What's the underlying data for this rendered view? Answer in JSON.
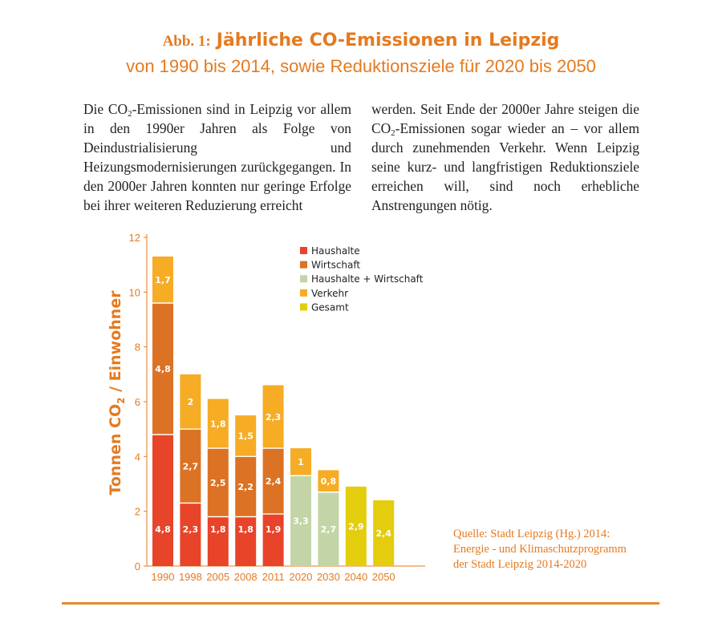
{
  "header": {
    "prefix": "Abb. 1:",
    "title": "Jährliche CO-Emissionen in Leipzig",
    "subtitle": "von 1990 bis 2014, sowie Reduktionsziele für 2020 bis 2050"
  },
  "text": {
    "left": {
      "p1": "Die CO",
      "sub": "2",
      "p2": "-Emissionen sind in Leipzig vor allem in den 1990er Jahren als Folge von Deindustrialisierung und Heizungsmodernisierungen zurückgegangen. In den 2000er Jahren konnten nur geringe Erfolge bei ihrer weiteren Reduzierung erreicht"
    },
    "right": {
      "p1": "werden. Seit Ende der 2000er Jahre steigen die CO",
      "sub": "2",
      "p2": "-Emissionen sogar wieder an – vor allem durch zunehmenden Verkehr. Wenn Leipzig seine kurz- und langfristigen Reduktionsziele erreichen will, sind noch erhebliche Anstrengungen nötig."
    }
  },
  "source": {
    "line1": "Quelle: Stadt Leipzig (Hg.) 2014:",
    "line2": "Energie - und Klimaschutzprogramm",
    "line3": "der Stadt Leipzig 2014-2020"
  },
  "chart_data": {
    "type": "bar",
    "stacked": true,
    "categories": [
      "1990",
      "1998",
      "2005",
      "2008",
      "2011",
      "2020",
      "2030",
      "2040",
      "2050"
    ],
    "ylabel": "Tonnen CO",
    "ylabel_sub": "2",
    "ylabel_rest": " / Einwohner",
    "ylim": [
      0,
      12
    ],
    "yticks": [
      "0",
      "2",
      "4",
      "6",
      "8",
      "10",
      "12"
    ],
    "legend_position": "top-right",
    "series": [
      {
        "name": "Haushalte",
        "color": "#e8442a",
        "values": [
          4.8,
          2.3,
          1.8,
          1.8,
          1.9,
          null,
          null,
          null,
          null
        ],
        "labels": [
          "4,8",
          "2,3",
          "1,8",
          "1,8",
          "1,9",
          "",
          "",
          "",
          ""
        ]
      },
      {
        "name": "Wirtschaft",
        "color": "#dc7223",
        "values": [
          4.8,
          2.7,
          2.5,
          2.2,
          2.4,
          null,
          null,
          null,
          null
        ],
        "labels": [
          "4,8",
          "2,7",
          "2,5",
          "2,2",
          "2,4",
          "",
          "",
          "",
          ""
        ]
      },
      {
        "name": "Haushalte + Wirtschaft",
        "color": "#c3d5a7",
        "values": [
          null,
          null,
          null,
          null,
          null,
          3.3,
          2.7,
          null,
          null
        ],
        "labels": [
          "",
          "",
          "",
          "",
          "",
          "3,3",
          "2,7",
          "",
          ""
        ]
      },
      {
        "name": "Verkehr",
        "color": "#f6ac24",
        "values": [
          1.7,
          2.0,
          1.8,
          1.5,
          2.3,
          1.0,
          0.8,
          null,
          null
        ],
        "labels": [
          "1,7",
          "2",
          "1,8",
          "1,5",
          "2,3",
          "1",
          "0,8",
          "",
          ""
        ]
      },
      {
        "name": "Gesamt",
        "color": "#e4cd0d",
        "values": [
          null,
          null,
          null,
          null,
          null,
          null,
          null,
          2.9,
          2.4
        ],
        "labels": [
          "",
          "",
          "",
          "",
          "",
          "",
          "",
          "2,9",
          "2,4"
        ]
      }
    ],
    "colors": {
      "axis": "#e57a1f",
      "label_text": "#ffffff"
    }
  }
}
